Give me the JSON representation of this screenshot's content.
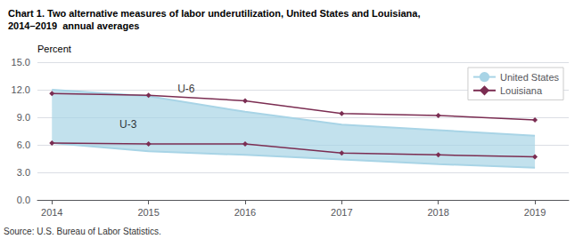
{
  "chart_data": {
    "type": "line",
    "title": "Chart 1. Two alternative measures of labor underutilization, United States and Louisiana,",
    "subtitle": "2014–2019  annual averages",
    "ylabel": "Percent",
    "source": "Source: U.S. Bureau of Labor Statistics.",
    "x": [
      2014,
      2015,
      2016,
      2017,
      2018,
      2019
    ],
    "xlim": [
      2013.85,
      2019.35
    ],
    "xticks": [
      2014,
      2015,
      2016,
      2017,
      2018,
      2019
    ],
    "ylim": [
      0,
      15.0
    ],
    "yticks": [
      {
        "value": 0.0,
        "label": "0.0"
      },
      {
        "value": 3.0,
        "label": "3.0"
      },
      {
        "value": 6.0,
        "label": "6.0"
      },
      {
        "value": 9.0,
        "label": "9.0"
      },
      {
        "value": 12.0,
        "label": "12.0"
      },
      {
        "value": 15.0,
        "label": "15.0"
      }
    ],
    "grid": true,
    "legend": "upper right",
    "series": [
      {
        "name": "United States",
        "color": "#a8d4e6",
        "type": "band",
        "values": [
          12.0,
          11.3,
          9.6,
          8.2,
          7.6,
          7.0
        ]
      },
      {
        "name": "United States",
        "color": "#a8d4e6",
        "type": "band",
        "values": [
          6.2,
          5.3,
          4.9,
          4.4,
          3.9,
          3.5
        ]
      },
      {
        "name": "Louisiana",
        "color": "#7b2d52",
        "type": "line",
        "marker": "diamond",
        "values": [
          11.6,
          11.4,
          10.8,
          9.4,
          9.2,
          8.7
        ]
      },
      {
        "name": "Louisiana",
        "color": "#7b2d52",
        "type": "line",
        "marker": "diamond",
        "values": [
          6.2,
          6.1,
          6.1,
          5.1,
          4.9,
          4.7
        ]
      }
    ],
    "annotations": [
      {
        "text": "U-6",
        "x": 2015.3,
        "y": 11.5
      },
      {
        "text": "U-3",
        "x": 2014.7,
        "y": 7.6
      }
    ]
  }
}
